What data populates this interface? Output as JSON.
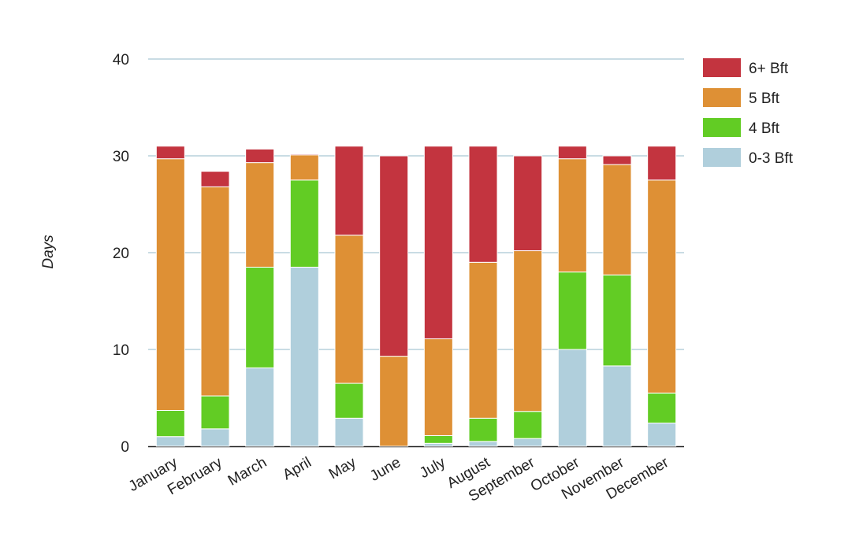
{
  "chart_data": {
    "type": "bar",
    "stacked": true,
    "title": "",
    "xlabel": "",
    "ylabel": "Days",
    "ylim": [
      0,
      40
    ],
    "yticks": [
      0,
      10,
      20,
      30,
      40
    ],
    "grid": true,
    "legend_position": "top-right",
    "categories": [
      "January",
      "February",
      "March",
      "April",
      "May",
      "June",
      "July",
      "August",
      "September",
      "October",
      "November",
      "December"
    ],
    "series": [
      {
        "name": "0-3 Bft",
        "color": "#b0cfdc",
        "values": [
          1.0,
          1.8,
          8.1,
          18.5,
          2.9,
          0,
          0.3,
          0.5,
          0.8,
          10.0,
          8.3,
          2.4
        ]
      },
      {
        "name": "4 Bft",
        "color": "#62cc24",
        "values": [
          2.7,
          3.4,
          10.4,
          9.0,
          3.6,
          0,
          0.8,
          2.4,
          2.8,
          8.0,
          9.4,
          3.1
        ]
      },
      {
        "name": "5 Bft",
        "color": "#de9035",
        "values": [
          26.0,
          21.6,
          10.8,
          2.6,
          15.3,
          9.3,
          10.0,
          16.1,
          16.6,
          11.7,
          11.4,
          22.0
        ]
      },
      {
        "name": "6+ Bft",
        "color": "#c3343f",
        "values": [
          1.3,
          1.6,
          1.4,
          0.1,
          9.2,
          20.7,
          19.9,
          12.0,
          9.8,
          1.3,
          0.9,
          3.5
        ]
      }
    ],
    "legend_order": [
      "6+ Bft",
      "5 Bft",
      "4 Bft",
      "0-3 Bft"
    ]
  }
}
